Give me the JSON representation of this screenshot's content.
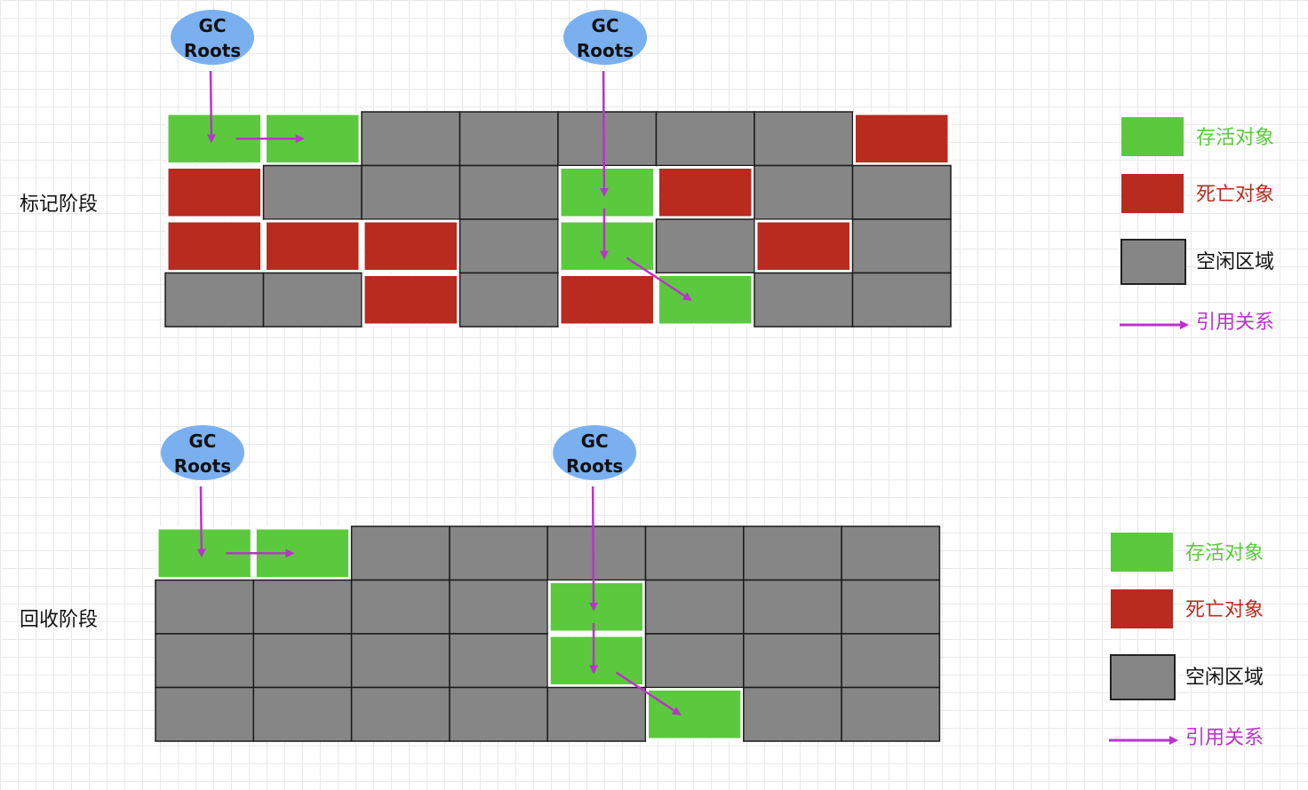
{
  "colors": {
    "alive": "#5bc93e",
    "dead": "#b92a1f",
    "free": "#868686",
    "arrow": "#bb33cc",
    "root_fill": "#7ab0f0",
    "alive_text": "#5bc93e",
    "dead_text": "#b92a1f",
    "free_text": "#111111",
    "ref_text": "#bb33cc"
  },
  "root_label": [
    "GC",
    "Roots"
  ],
  "legend": {
    "alive": "存活对象",
    "dead": "死亡对象",
    "free": "空闲区域",
    "reference": "引用关系"
  },
  "stages": [
    {
      "label": "标记阶段",
      "grid": [
        [
          "alive",
          "alive",
          "free",
          "free",
          "free",
          "free",
          "free",
          "dead"
        ],
        [
          "dead",
          "free",
          "free",
          "free",
          "alive",
          "dead",
          "free",
          "free"
        ],
        [
          "dead",
          "dead",
          "dead",
          "free",
          "alive",
          "free",
          "dead",
          "free"
        ],
        [
          "free",
          "free",
          "dead",
          "free",
          "dead",
          "alive",
          "free",
          "free"
        ]
      ],
      "roots": [
        {
          "column": 0,
          "references": [
            [
              0,
              0
            ]
          ]
        },
        {
          "column": 4,
          "references": [
            [
              1,
              4
            ]
          ]
        }
      ],
      "references": [
        {
          "from": [
            0,
            0
          ],
          "to": [
            0,
            1
          ]
        },
        {
          "from": [
            1,
            4
          ],
          "to": [
            2,
            4
          ]
        },
        {
          "from": [
            2,
            4
          ],
          "to": [
            3,
            5
          ]
        }
      ]
    },
    {
      "label": "回收阶段",
      "grid": [
        [
          "alive",
          "alive",
          "free",
          "free",
          "free",
          "free",
          "free",
          "free"
        ],
        [
          "free",
          "free",
          "free",
          "free",
          "alive",
          "free",
          "free",
          "free"
        ],
        [
          "free",
          "free",
          "free",
          "free",
          "alive",
          "free",
          "free",
          "free"
        ],
        [
          "free",
          "free",
          "free",
          "free",
          "free",
          "alive",
          "free",
          "free"
        ]
      ],
      "roots": [
        {
          "column": 0,
          "references": [
            [
              0,
              0
            ]
          ]
        },
        {
          "column": 4,
          "references": [
            [
              1,
              4
            ]
          ]
        }
      ],
      "references": [
        {
          "from": [
            0,
            0
          ],
          "to": [
            0,
            1
          ]
        },
        {
          "from": [
            1,
            4
          ],
          "to": [
            2,
            4
          ]
        },
        {
          "from": [
            2,
            4
          ],
          "to": [
            3,
            5
          ]
        }
      ]
    }
  ]
}
